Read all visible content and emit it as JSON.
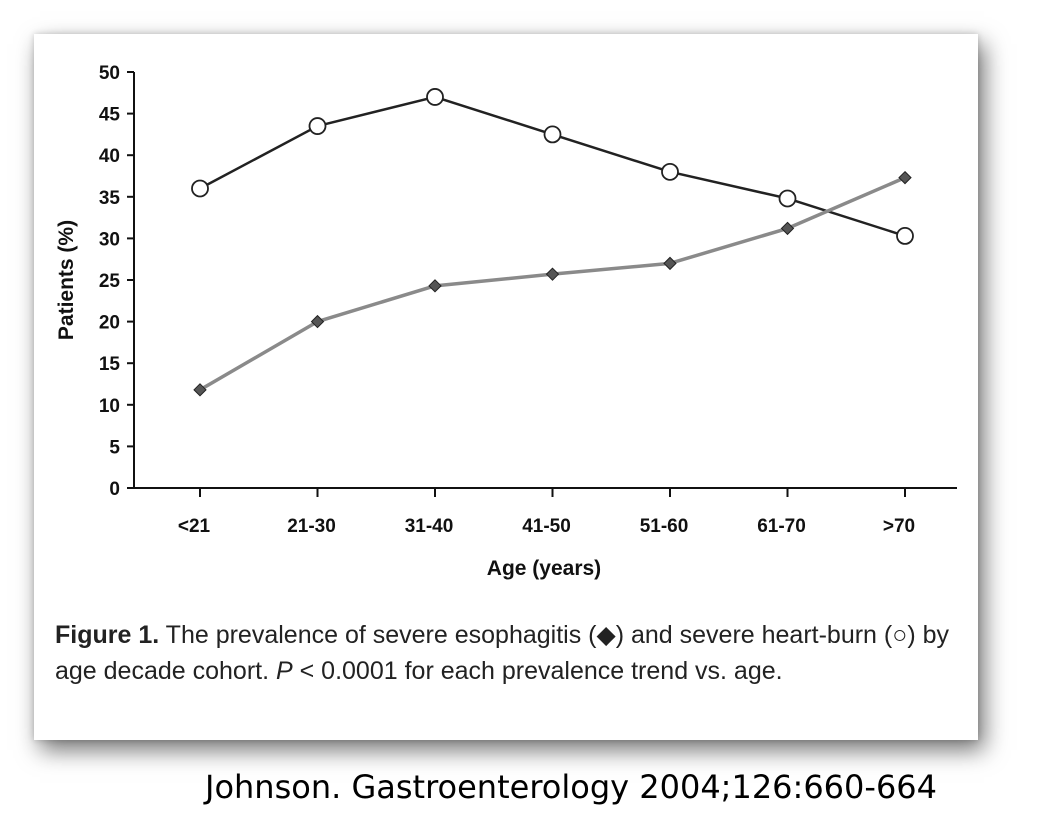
{
  "chart_data": {
    "type": "line",
    "categories": [
      "<21",
      "21-30",
      "31-40",
      "41-50",
      "51-60",
      "61-70",
      ">70"
    ],
    "xlabel": "Age (years)",
    "ylabel": "Patients (%)",
    "ylim": [
      0,
      50
    ],
    "yticks": [
      0,
      5,
      10,
      15,
      20,
      25,
      30,
      35,
      40,
      45,
      50
    ],
    "grid": false,
    "legend": "none",
    "series": [
      {
        "marker": "open-circle",
        "color": "#222222",
        "values": [
          36,
          43.5,
          47,
          42.5,
          38,
          34.8,
          30.3
        ]
      },
      {
        "marker": "filled-diamond",
        "color": "#555555",
        "values": [
          11.8,
          20,
          24.3,
          25.7,
          27,
          31.2,
          37.3
        ]
      }
    ]
  },
  "caption": {
    "figure_label": "Figure 1.",
    "text_before_p": " The prevalence of severe esophagitis (◆) and severe heart-burn (○) by age decade cohort. ",
    "p_symbol": "P",
    "text_after_p": " < 0.0001 for each prevalence trend vs. age."
  },
  "citation": "Johnson. Gastroenterology 2004;126:660-664"
}
